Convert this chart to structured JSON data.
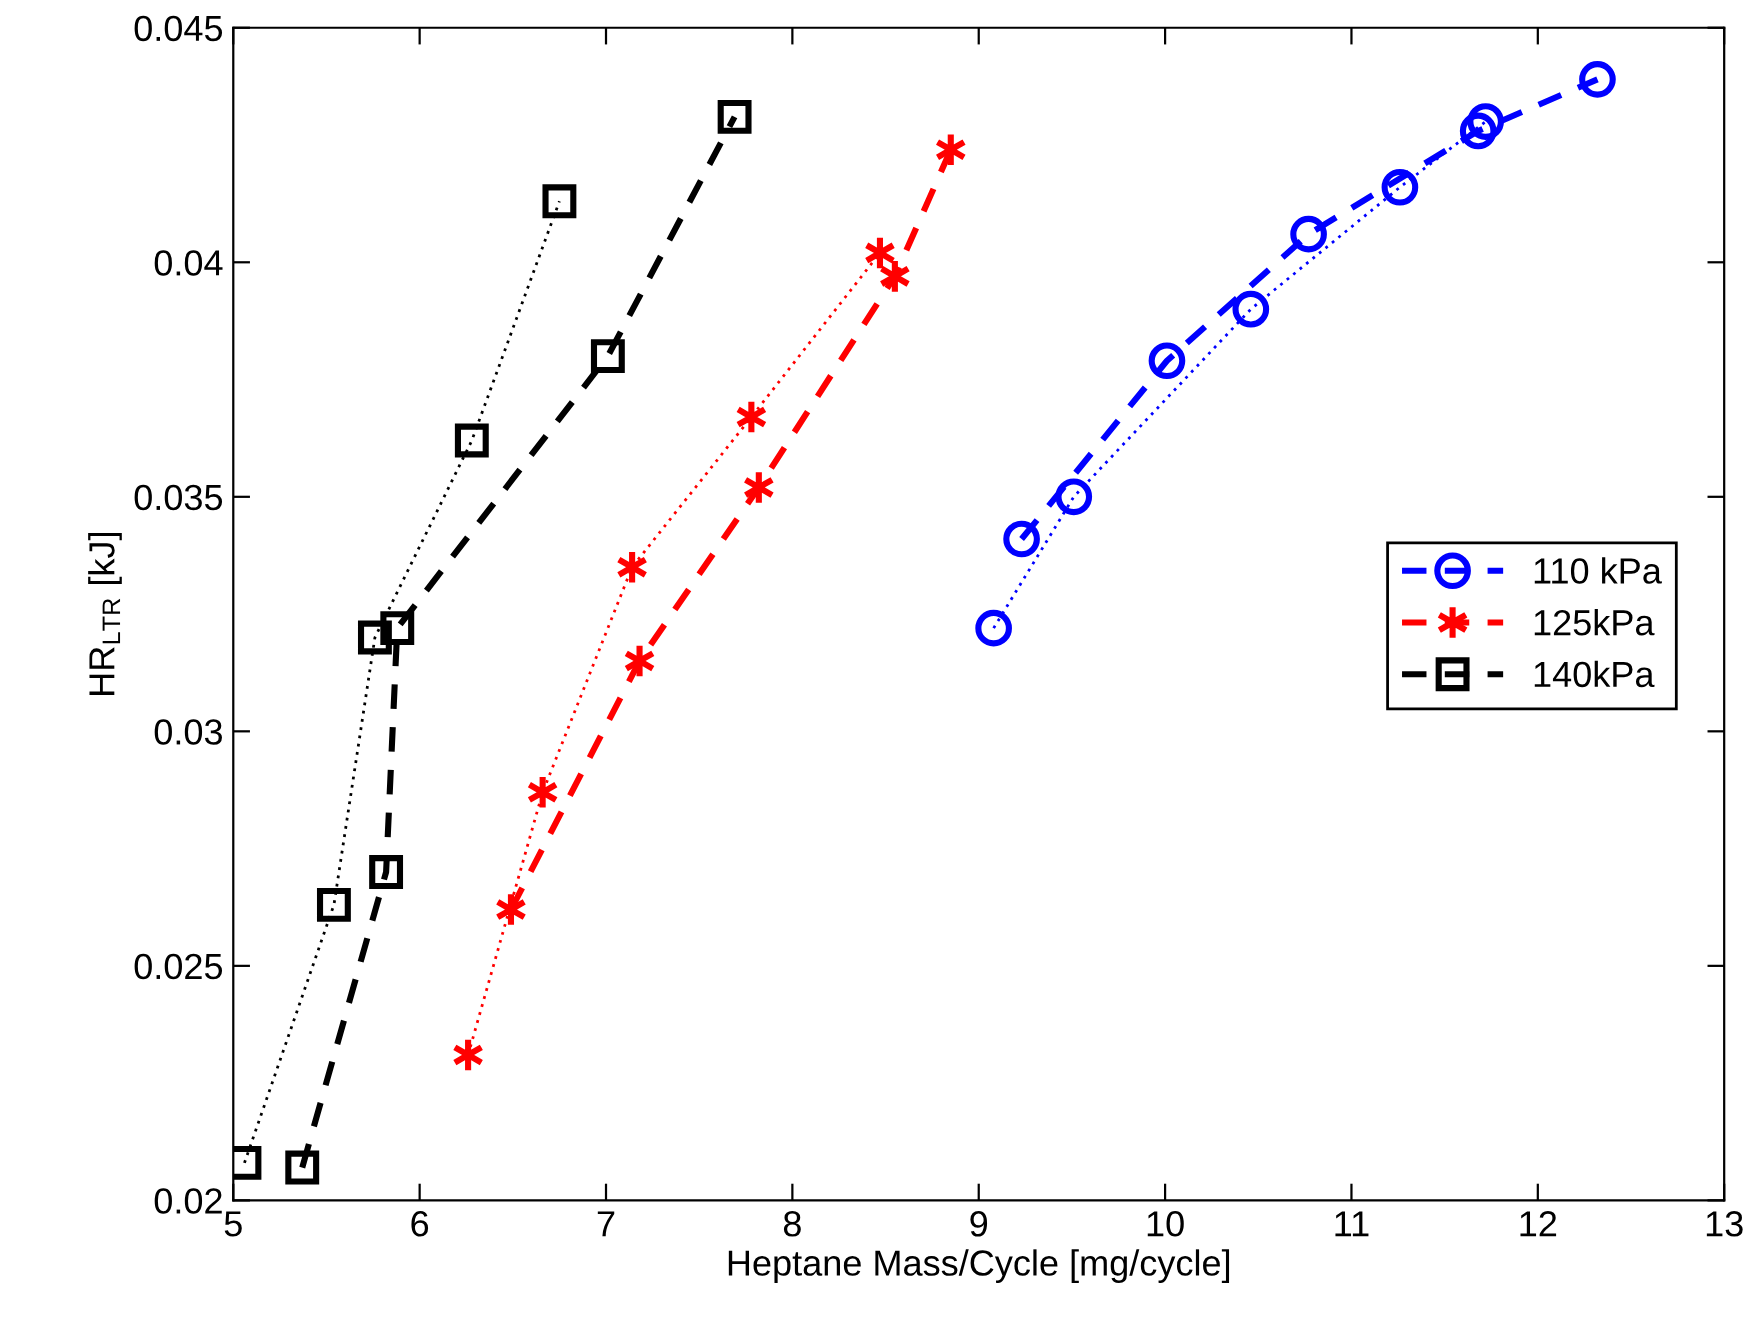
{
  "chart_data": {
    "type": "line",
    "xlabel": "Heptane Mass/Cycle [mg/cycle]",
    "ylabel": "HR$_{LTR}$ [kJ]",
    "xlim": [
      5,
      13
    ],
    "xticks": [
      5,
      6,
      7,
      8,
      9,
      10,
      11,
      12,
      13
    ],
    "ylim": [
      0.02,
      0.045
    ],
    "yticks": [
      0.02,
      0.025,
      0.03,
      0.035,
      0.04,
      0.045
    ],
    "grid": false,
    "legend": "right",
    "series": [
      {
        "name": "110 kPa",
        "color": "#0000ff",
        "marker": "circle",
        "line_style": "dashed",
        "x": [
          9.23,
          10.01,
          10.77,
          11.68,
          12.32
        ],
        "values": [
          0.0341,
          0.0379,
          0.0406,
          0.0428,
          0.0439
        ]
      },
      {
        "name": "125kPa",
        "color": "#ff0000",
        "marker": "cross",
        "line_style": "dashed",
        "x": [
          6.49,
          7.18,
          7.82,
          8.55,
          8.85
        ],
        "values": [
          0.0262,
          0.0315,
          0.0352,
          0.0397,
          0.0424
        ]
      },
      {
        "name": "140kPa",
        "color": "#000000",
        "marker": "square",
        "line_style": "dashed",
        "x": [
          5.37,
          5.82,
          5.88,
          7.01,
          7.69
        ],
        "values": [
          0.0207,
          0.027,
          0.0322,
          0.038,
          0.0431
        ]
      },
      {
        "color": "#0000ff",
        "marker": "circle",
        "line_style": "dotted",
        "x": [
          9.08,
          9.51,
          10.46,
          11.26,
          11.72
        ],
        "values": [
          0.0322,
          0.035,
          0.039,
          0.0416,
          0.043
        ]
      },
      {
        "color": "#ff0000",
        "marker": "cross",
        "line_style": "dotted",
        "x": [
          6.26,
          6.66,
          7.14,
          7.78,
          8.47
        ],
        "values": [
          0.0231,
          0.0287,
          0.0335,
          0.0367,
          0.0402
        ]
      },
      {
        "color": "#000000",
        "marker": "square",
        "line_style": "dotted",
        "x": [
          5.06,
          5.54,
          5.76,
          6.28,
          6.75
        ],
        "values": [
          0.0208,
          0.0263,
          0.032,
          0.0362,
          0.0413
        ]
      }
    ]
  }
}
